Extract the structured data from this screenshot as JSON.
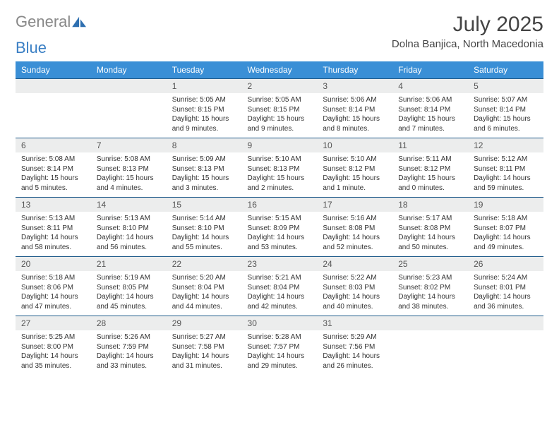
{
  "brand": {
    "part1": "General",
    "part2": "Blue"
  },
  "title": "July 2025",
  "location": "Dolna Banjica, North Macedonia",
  "colors": {
    "header_bg": "#3a8fd6",
    "rule": "#1e5a8a",
    "daynum_bg": "#eceded"
  },
  "day_headers": [
    "Sunday",
    "Monday",
    "Tuesday",
    "Wednesday",
    "Thursday",
    "Friday",
    "Saturday"
  ],
  "weeks": [
    [
      null,
      null,
      {
        "n": "1",
        "sr": "5:05 AM",
        "ss": "8:15 PM",
        "dl": "15 hours and 9 minutes."
      },
      {
        "n": "2",
        "sr": "5:05 AM",
        "ss": "8:15 PM",
        "dl": "15 hours and 9 minutes."
      },
      {
        "n": "3",
        "sr": "5:06 AM",
        "ss": "8:14 PM",
        "dl": "15 hours and 8 minutes."
      },
      {
        "n": "4",
        "sr": "5:06 AM",
        "ss": "8:14 PM",
        "dl": "15 hours and 7 minutes."
      },
      {
        "n": "5",
        "sr": "5:07 AM",
        "ss": "8:14 PM",
        "dl": "15 hours and 6 minutes."
      }
    ],
    [
      {
        "n": "6",
        "sr": "5:08 AM",
        "ss": "8:14 PM",
        "dl": "15 hours and 5 minutes."
      },
      {
        "n": "7",
        "sr": "5:08 AM",
        "ss": "8:13 PM",
        "dl": "15 hours and 4 minutes."
      },
      {
        "n": "8",
        "sr": "5:09 AM",
        "ss": "8:13 PM",
        "dl": "15 hours and 3 minutes."
      },
      {
        "n": "9",
        "sr": "5:10 AM",
        "ss": "8:13 PM",
        "dl": "15 hours and 2 minutes."
      },
      {
        "n": "10",
        "sr": "5:10 AM",
        "ss": "8:12 PM",
        "dl": "15 hours and 1 minute."
      },
      {
        "n": "11",
        "sr": "5:11 AM",
        "ss": "8:12 PM",
        "dl": "15 hours and 0 minutes."
      },
      {
        "n": "12",
        "sr": "5:12 AM",
        "ss": "8:11 PM",
        "dl": "14 hours and 59 minutes."
      }
    ],
    [
      {
        "n": "13",
        "sr": "5:13 AM",
        "ss": "8:11 PM",
        "dl": "14 hours and 58 minutes."
      },
      {
        "n": "14",
        "sr": "5:13 AM",
        "ss": "8:10 PM",
        "dl": "14 hours and 56 minutes."
      },
      {
        "n": "15",
        "sr": "5:14 AM",
        "ss": "8:10 PM",
        "dl": "14 hours and 55 minutes."
      },
      {
        "n": "16",
        "sr": "5:15 AM",
        "ss": "8:09 PM",
        "dl": "14 hours and 53 minutes."
      },
      {
        "n": "17",
        "sr": "5:16 AM",
        "ss": "8:08 PM",
        "dl": "14 hours and 52 minutes."
      },
      {
        "n": "18",
        "sr": "5:17 AM",
        "ss": "8:08 PM",
        "dl": "14 hours and 50 minutes."
      },
      {
        "n": "19",
        "sr": "5:18 AM",
        "ss": "8:07 PM",
        "dl": "14 hours and 49 minutes."
      }
    ],
    [
      {
        "n": "20",
        "sr": "5:18 AM",
        "ss": "8:06 PM",
        "dl": "14 hours and 47 minutes."
      },
      {
        "n": "21",
        "sr": "5:19 AM",
        "ss": "8:05 PM",
        "dl": "14 hours and 45 minutes."
      },
      {
        "n": "22",
        "sr": "5:20 AM",
        "ss": "8:04 PM",
        "dl": "14 hours and 44 minutes."
      },
      {
        "n": "23",
        "sr": "5:21 AM",
        "ss": "8:04 PM",
        "dl": "14 hours and 42 minutes."
      },
      {
        "n": "24",
        "sr": "5:22 AM",
        "ss": "8:03 PM",
        "dl": "14 hours and 40 minutes."
      },
      {
        "n": "25",
        "sr": "5:23 AM",
        "ss": "8:02 PM",
        "dl": "14 hours and 38 minutes."
      },
      {
        "n": "26",
        "sr": "5:24 AM",
        "ss": "8:01 PM",
        "dl": "14 hours and 36 minutes."
      }
    ],
    [
      {
        "n": "27",
        "sr": "5:25 AM",
        "ss": "8:00 PM",
        "dl": "14 hours and 35 minutes."
      },
      {
        "n": "28",
        "sr": "5:26 AM",
        "ss": "7:59 PM",
        "dl": "14 hours and 33 minutes."
      },
      {
        "n": "29",
        "sr": "5:27 AM",
        "ss": "7:58 PM",
        "dl": "14 hours and 31 minutes."
      },
      {
        "n": "30",
        "sr": "5:28 AM",
        "ss": "7:57 PM",
        "dl": "14 hours and 29 minutes."
      },
      {
        "n": "31",
        "sr": "5:29 AM",
        "ss": "7:56 PM",
        "dl": "14 hours and 26 minutes."
      },
      null,
      null
    ]
  ],
  "labels": {
    "sunrise": "Sunrise:",
    "sunset": "Sunset:",
    "daylight": "Daylight:"
  }
}
